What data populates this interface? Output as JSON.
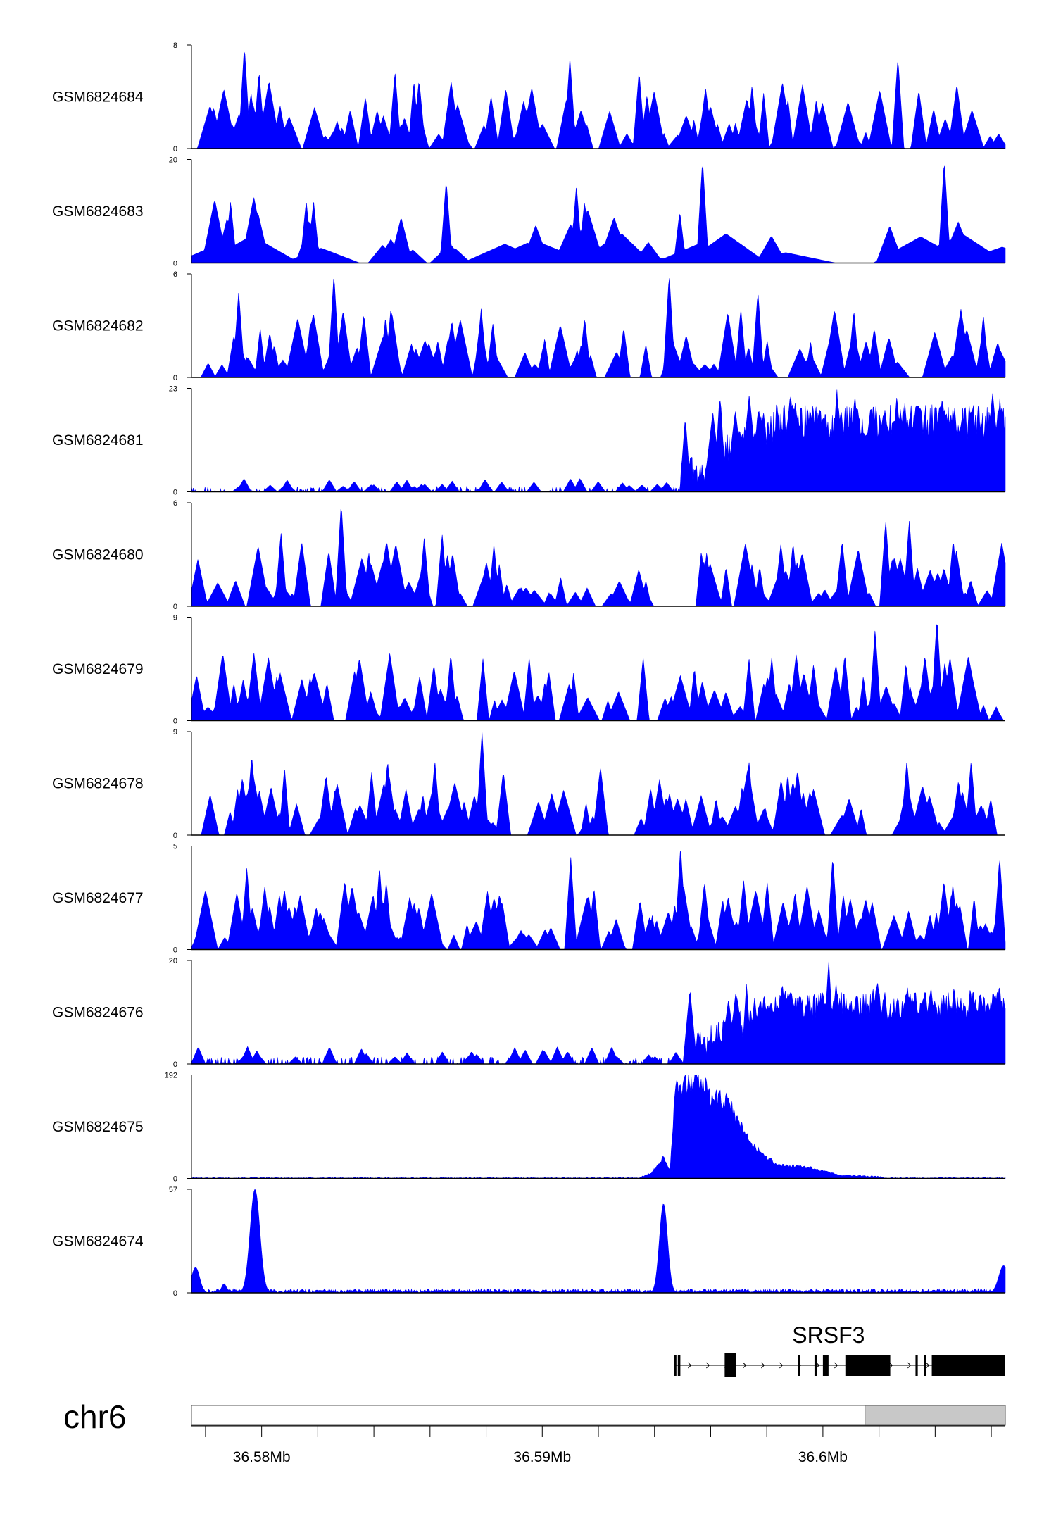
{
  "chart_data": {
    "type": "area",
    "chromosome": "chr6",
    "x_range_bp": [
      36576000,
      36605000
    ],
    "fill_color": "#0000ff",
    "ideogram_color": "#c8c8c8",
    "gene": {
      "name": "SRSF3",
      "exons_bp": [
        [
          36593200,
          36593280
        ],
        [
          36593330,
          36593420
        ],
        [
          36595000,
          36595400
        ],
        [
          36597600,
          36597680
        ],
        [
          36598200,
          36598280
        ],
        [
          36598500,
          36598700
        ],
        [
          36599300,
          36600900
        ],
        [
          36601800,
          36601880
        ],
        [
          36602100,
          36602180
        ],
        [
          36602380,
          36605000
        ]
      ],
      "intron_range_bp": [
        36593420,
        36605000
      ]
    },
    "ideogram_band_bp": [
      36600000,
      36605000
    ],
    "x_ticks": [
      {
        "pos": 36576500,
        "label": ""
      },
      {
        "pos": 36578500,
        "label": "36.58Mb"
      },
      {
        "pos": 36580500,
        "label": ""
      },
      {
        "pos": 36582500,
        "label": ""
      },
      {
        "pos": 36584500,
        "label": ""
      },
      {
        "pos": 36586500,
        "label": ""
      },
      {
        "pos": 36588500,
        "label": "36.59Mb"
      },
      {
        "pos": 36590500,
        "label": ""
      },
      {
        "pos": 36592500,
        "label": ""
      },
      {
        "pos": 36594500,
        "label": ""
      },
      {
        "pos": 36596500,
        "label": ""
      },
      {
        "pos": 36598500,
        "label": "36.6Mb"
      },
      {
        "pos": 36600500,
        "label": ""
      },
      {
        "pos": 36602500,
        "label": ""
      },
      {
        "pos": 36604500,
        "label": ""
      }
    ],
    "series": [
      {
        "name": "GSM6824684",
        "ymax": "8",
        "ymin": "0",
        "ymax_value": 8,
        "pattern": "sparse",
        "seed": 11,
        "peaks": [
          [
            0.065,
            8
          ],
          [
            0.083,
            6
          ],
          [
            0.465,
            7
          ],
          [
            0.868,
            7
          ],
          [
            0.55,
            6
          ],
          [
            0.25,
            6
          ]
        ]
      },
      {
        "name": "GSM6824683",
        "ymax": "20",
        "ymin": "0",
        "ymax_value": 20,
        "pattern": "very_sparse",
        "seed": 23,
        "peaks": [
          [
            0.628,
            20
          ],
          [
            0.925,
            20
          ],
          [
            0.313,
            16
          ],
          [
            0.473,
            15
          ],
          [
            0.483,
            12
          ],
          [
            0.048,
            12
          ],
          [
            0.141,
            12
          ],
          [
            0.15,
            12
          ],
          [
            0.6,
            10
          ]
        ]
      },
      {
        "name": "GSM6824682",
        "ymax": "6",
        "ymin": "0",
        "ymax_value": 6,
        "pattern": "sparse",
        "seed": 37,
        "peaks": [
          [
            0.175,
            6
          ],
          [
            0.587,
            6
          ],
          [
            0.058,
            5
          ],
          [
            0.696,
            5
          ],
          [
            0.675,
            4
          ],
          [
            0.245,
            4
          ],
          [
            0.356,
            4
          ]
        ]
      },
      {
        "name": "GSM6824681",
        "ymax": "23",
        "ymin": "0",
        "ymax_value": 23,
        "pattern": "ramp",
        "seed": 41,
        "ramp_start": 0.6,
        "ramp_full": 0.72,
        "low_level": 1.2,
        "high_level": 14,
        "peaks": [
          [
            0.793,
            23
          ],
          [
            0.745,
            18
          ],
          [
            0.676,
            13
          ],
          [
            0.864,
            14
          ],
          [
            0.7,
            12
          ]
        ]
      },
      {
        "name": "GSM6824680",
        "ymax": "6",
        "ymin": "0",
        "ymax_value": 6,
        "pattern": "sparse",
        "seed": 53,
        "peaks": [
          [
            0.184,
            6
          ],
          [
            0.11,
            4.3
          ],
          [
            0.308,
            4.2
          ],
          [
            0.853,
            5
          ],
          [
            0.882,
            5
          ],
          [
            0.286,
            4
          ]
        ]
      },
      {
        "name": "GSM6824679",
        "ymax": "9",
        "ymin": "0",
        "ymax_value": 9,
        "pattern": "sparse",
        "seed": 67,
        "peaks": [
          [
            0.916,
            9
          ],
          [
            0.84,
            8
          ],
          [
            0.319,
            5.5
          ],
          [
            0.415,
            5.5
          ],
          [
            0.555,
            5.5
          ],
          [
            0.685,
            5.5
          ],
          [
            0.713,
            5.5
          ]
        ]
      },
      {
        "name": "GSM6824678",
        "ymax": "9",
        "ymin": "0",
        "ymax_value": 9,
        "pattern": "sparse",
        "seed": 71,
        "peaks": [
          [
            0.357,
            9
          ],
          [
            0.074,
            7
          ],
          [
            0.241,
            6.5
          ],
          [
            0.299,
            6.5
          ],
          [
            0.685,
            6.5
          ],
          [
            0.879,
            6.5
          ],
          [
            0.958,
            6.5
          ]
        ]
      },
      {
        "name": "GSM6824677",
        "ymax": "5",
        "ymin": "0",
        "ymax_value": 5,
        "pattern": "dense",
        "seed": 83,
        "peaks": [
          [
            0.601,
            5
          ],
          [
            0.993,
            4.5
          ],
          [
            0.788,
            4.5
          ],
          [
            0.466,
            4.5
          ],
          [
            0.231,
            4
          ],
          [
            0.068,
            4
          ]
        ]
      },
      {
        "name": "GSM6824676",
        "ymax": "20",
        "ymin": "0",
        "ymax_value": 20,
        "pattern": "ramp",
        "seed": 97,
        "ramp_start": 0.61,
        "ramp_full": 0.72,
        "low_level": 1.4,
        "high_level": 10,
        "peaks": [
          [
            0.783,
            20
          ],
          [
            0.692,
            13
          ],
          [
            0.748,
            14
          ],
          [
            0.924,
            14
          ],
          [
            0.957,
            15
          ]
        ]
      },
      {
        "name": "GSM6824675",
        "ymax": "192",
        "ymin": "0",
        "ymax_value": 192,
        "pattern": "block",
        "seed": 101,
        "block": [
          [
            0.55,
            0
          ],
          [
            0.565,
            10
          ],
          [
            0.58,
            40
          ],
          [
            0.588,
            15
          ],
          [
            0.595,
            180
          ],
          [
            0.61,
            170
          ],
          [
            0.62,
            190
          ],
          [
            0.64,
            150
          ],
          [
            0.66,
            140
          ],
          [
            0.67,
            110
          ],
          [
            0.69,
            60
          ],
          [
            0.72,
            25
          ],
          [
            0.76,
            20
          ],
          [
            0.8,
            5
          ],
          [
            0.85,
            2
          ]
        ],
        "peaks": []
      },
      {
        "name": "GSM6824674",
        "ymax": "57",
        "ymin": "0",
        "ymax_value": 57,
        "pattern": "spikes",
        "seed": 113,
        "spikes": [
          [
            0.078,
            57,
            0.006
          ],
          [
            0.58,
            49,
            0.005
          ],
          [
            0.005,
            14,
            0.005
          ],
          [
            0.998,
            15,
            0.006
          ],
          [
            0.04,
            5,
            0.003
          ]
        ],
        "peaks": []
      }
    ]
  }
}
